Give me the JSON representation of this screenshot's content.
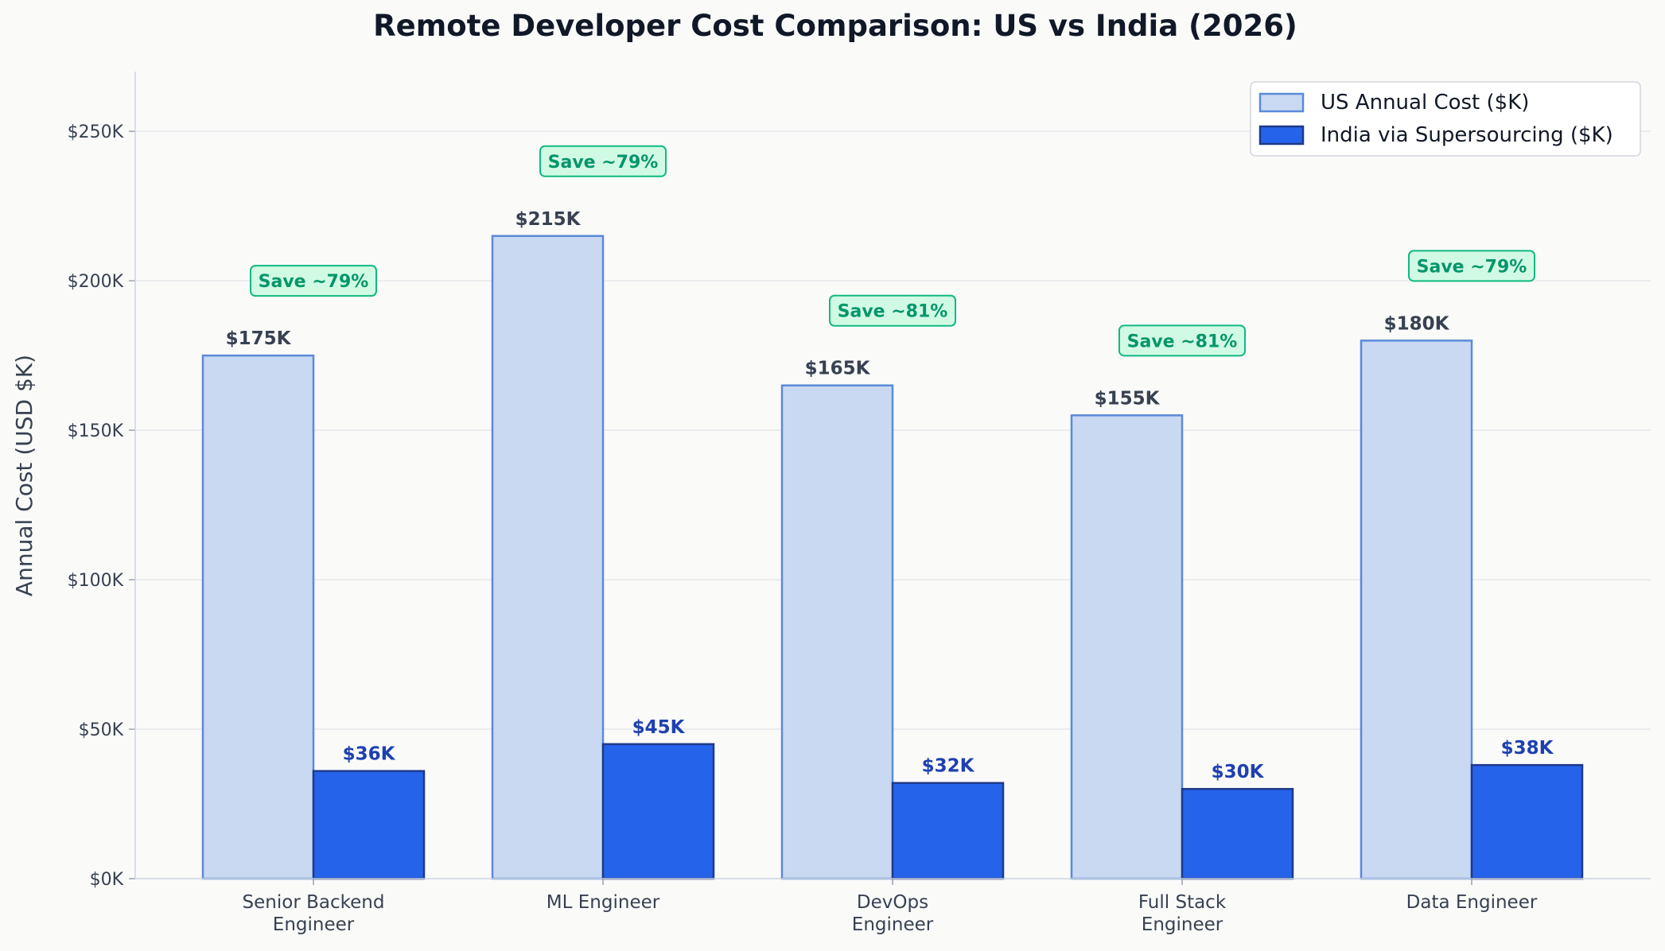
{
  "chart_data": {
    "type": "bar",
    "title": "Remote Developer Cost Comparison: US vs India (2026)",
    "xlabel": "",
    "ylabel": "Annual Cost (USD $K)",
    "ylim": [
      0,
      270
    ],
    "yticks": [
      0,
      50,
      100,
      150,
      200,
      250
    ],
    "ytick_labels": [
      "$0K",
      "$50K",
      "$100K",
      "$150K",
      "$200K",
      "$250K"
    ],
    "categories": [
      [
        "Senior Backend",
        "Engineer"
      ],
      [
        "ML Engineer"
      ],
      [
        "DevOps",
        "Engineer"
      ],
      [
        "Full Stack",
        "Engineer"
      ],
      [
        "Data Engineer"
      ]
    ],
    "series": [
      {
        "name": "US Annual Cost ($K)",
        "values": [
          175,
          215,
          165,
          155,
          180
        ],
        "labels": [
          "$175K",
          "$215K",
          "$165K",
          "$155K",
          "$180K"
        ],
        "fill": "#c9d9f2",
        "stroke": "#5b8ad9",
        "label_color": "#374151"
      },
      {
        "name": "India via Supersourcing ($K)",
        "values": [
          36,
          45,
          32,
          30,
          38
        ],
        "labels": [
          "$36K",
          "$45K",
          "$32K",
          "$30K",
          "$38K"
        ],
        "fill": "#2563eb",
        "stroke": "#1e3a8a",
        "label_color": "#1e40af"
      }
    ],
    "annotations": [
      {
        "text": "Save ~79%",
        "y": 200
      },
      {
        "text": "Save ~79%",
        "y": 240
      },
      {
        "text": "Save ~81%",
        "y": 190
      },
      {
        "text": "Save ~81%",
        "y": 180
      },
      {
        "text": "Save ~79%",
        "y": 205
      }
    ],
    "annotation_colors": {
      "text": "#059669",
      "fill": "#d1fae5",
      "stroke": "#10b981"
    },
    "grid": true,
    "legend_position": "top-right"
  }
}
